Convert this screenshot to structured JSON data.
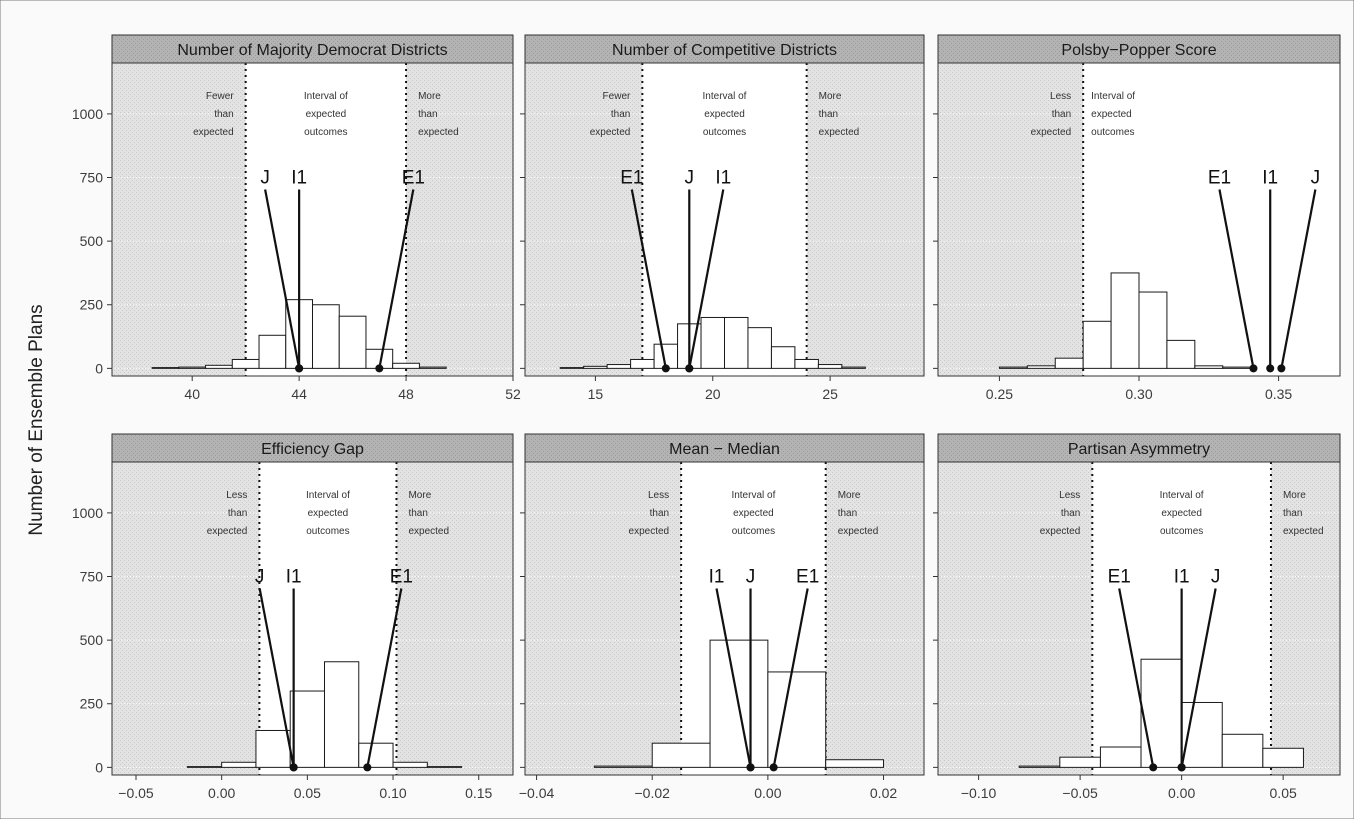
{
  "figure": {
    "ylabel": "Number of Ensemble Plans",
    "colors": {
      "panel_background": "#e3e3e3",
      "strip_background": "#b3b3b3",
      "bar_fill": "#ffffff",
      "interval_fill": "#ffffff",
      "bar_stroke": "#1a1a1a",
      "marker": "#111111",
      "grid": "#f4f4f4"
    }
  },
  "chart_data": [
    {
      "type": "bar",
      "title": "Number of Majority Democrat Districts",
      "xlim": [
        37,
        52
      ],
      "xticks": [
        40,
        44,
        48,
        52
      ],
      "xtick_labels": [
        "40",
        "44",
        "48",
        "52"
      ],
      "ylim": [
        -30,
        1200
      ],
      "yticks": [
        0,
        250,
        500,
        750,
        1000
      ],
      "ytick_labels": [
        "0",
        "250",
        "500",
        "750",
        "1000"
      ],
      "bin_width": 1,
      "bins": [
        {
          "x": 39,
          "y": 3
        },
        {
          "x": 40,
          "y": 5
        },
        {
          "x": 41,
          "y": 12
        },
        {
          "x": 42,
          "y": 35
        },
        {
          "x": 43,
          "y": 130
        },
        {
          "x": 44,
          "y": 270
        },
        {
          "x": 45,
          "y": 250
        },
        {
          "x": 46,
          "y": 205
        },
        {
          "x": 47,
          "y": 75
        },
        {
          "x": 48,
          "y": 20
        },
        {
          "x": 49,
          "y": 5
        }
      ],
      "interval": [
        42,
        48
      ],
      "annotations": [
        {
          "lines": [
            "Fewer",
            "than",
            "expected"
          ],
          "region": "left"
        },
        {
          "lines": [
            "Interval of",
            "expected",
            "outcomes"
          ],
          "region": "middle"
        },
        {
          "lines": [
            "More",
            "than",
            "expected"
          ],
          "region": "right"
        }
      ],
      "plans": [
        {
          "name": "J",
          "value": 44
        },
        {
          "name": "I1",
          "value": 44
        },
        {
          "name": "E1",
          "value": 47
        }
      ]
    },
    {
      "type": "bar",
      "title": "Number of Competitive Districts",
      "xlim": [
        12,
        29
      ],
      "xticks": [
        15,
        20,
        25
      ],
      "xtick_labels": [
        "15",
        "20",
        "25"
      ],
      "ylim": [
        -30,
        1200
      ],
      "yticks": [
        0,
        250,
        500,
        750,
        1000
      ],
      "ytick_labels": [
        "0",
        "250",
        "500",
        "750",
        "1000"
      ],
      "bin_width": 1,
      "bins": [
        {
          "x": 14,
          "y": 3
        },
        {
          "x": 15,
          "y": 8
        },
        {
          "x": 16,
          "y": 15
        },
        {
          "x": 17,
          "y": 35
        },
        {
          "x": 18,
          "y": 95
        },
        {
          "x": 19,
          "y": 175
        },
        {
          "x": 20,
          "y": 200
        },
        {
          "x": 21,
          "y": 200
        },
        {
          "x": 22,
          "y": 160
        },
        {
          "x": 23,
          "y": 85
        },
        {
          "x": 24,
          "y": 35
        },
        {
          "x": 25,
          "y": 15
        },
        {
          "x": 26,
          "y": 5
        }
      ],
      "interval": [
        17,
        24
      ],
      "annotations": [
        {
          "lines": [
            "Fewer",
            "than",
            "expected"
          ],
          "region": "left"
        },
        {
          "lines": [
            "Interval of",
            "expected",
            "outcomes"
          ],
          "region": "middle"
        },
        {
          "lines": [
            "More",
            "than",
            "expected"
          ],
          "region": "right"
        }
      ],
      "plans": [
        {
          "name": "E1",
          "value": 18
        },
        {
          "name": "J",
          "value": 19
        },
        {
          "name": "I1",
          "value": 19
        }
      ]
    },
    {
      "type": "bar",
      "title": "Polsby−Popper Score",
      "xlim": [
        0.228,
        0.372
      ],
      "xticks": [
        0.25,
        0.3,
        0.35
      ],
      "xtick_labels": [
        "0.25",
        "0.30",
        "0.35"
      ],
      "ylim": [
        -30,
        1200
      ],
      "yticks": [
        0,
        250,
        500,
        750,
        1000
      ],
      "ytick_labels": [
        "0",
        "250",
        "500",
        "750",
        "1000"
      ],
      "bin_width": 0.01,
      "bins": [
        {
          "x": 0.255,
          "y": 5
        },
        {
          "x": 0.265,
          "y": 10
        },
        {
          "x": 0.275,
          "y": 40
        },
        {
          "x": 0.285,
          "y": 185
        },
        {
          "x": 0.295,
          "y": 375
        },
        {
          "x": 0.305,
          "y": 300
        },
        {
          "x": 0.315,
          "y": 110
        },
        {
          "x": 0.325,
          "y": 10
        },
        {
          "x": 0.335,
          "y": 5
        }
      ],
      "interval": [
        0.28,
        0.38
      ],
      "annotations": [
        {
          "lines": [
            "Less",
            "than",
            "expected"
          ],
          "region": "left"
        },
        {
          "lines": [
            "Interval of",
            "expected",
            "outcomes"
          ],
          "region": "middle"
        },
        {
          "lines": [],
          "region": "right"
        }
      ],
      "plans": [
        {
          "name": "E1",
          "value": 0.341
        },
        {
          "name": "I1",
          "value": 0.347
        },
        {
          "name": "J",
          "value": 0.351
        }
      ]
    },
    {
      "type": "bar",
      "title": "Efficiency Gap",
      "xlim": [
        -0.064,
        0.17
      ],
      "xticks": [
        -0.05,
        0.0,
        0.05,
        0.1,
        0.15
      ],
      "xtick_labels": [
        "−0.05",
        "0.00",
        "0.05",
        "0.10",
        "0.15"
      ],
      "ylim": [
        -30,
        1200
      ],
      "yticks": [
        0,
        250,
        500,
        750,
        1000
      ],
      "ytick_labels": [
        "0",
        "250",
        "500",
        "750",
        "1000"
      ],
      "bin_width": 0.02,
      "bins": [
        {
          "x": -0.01,
          "y": 3
        },
        {
          "x": 0.01,
          "y": 20
        },
        {
          "x": 0.03,
          "y": 145
        },
        {
          "x": 0.05,
          "y": 300
        },
        {
          "x": 0.07,
          "y": 415
        },
        {
          "x": 0.09,
          "y": 95
        },
        {
          "x": 0.11,
          "y": 20
        },
        {
          "x": 0.13,
          "y": 3
        }
      ],
      "interval": [
        0.022,
        0.102
      ],
      "annotations": [
        {
          "lines": [
            "Less",
            "than",
            "expected"
          ],
          "region": "left"
        },
        {
          "lines": [
            "Interval of",
            "expected",
            "outcomes"
          ],
          "region": "middle"
        },
        {
          "lines": [
            "More",
            "than",
            "expected"
          ],
          "region": "right"
        }
      ],
      "plans": [
        {
          "name": "J",
          "value": 0.042
        },
        {
          "name": "I1",
          "value": 0.042
        },
        {
          "name": "E1",
          "value": 0.085
        }
      ]
    },
    {
      "type": "bar",
      "title": "Mean − Median",
      "xlim": [
        -0.042,
        0.027
      ],
      "xticks": [
        -0.04,
        -0.02,
        0.0,
        0.02
      ],
      "xtick_labels": [
        "−0.04",
        "−0.02",
        "0.00",
        "0.02"
      ],
      "ylim": [
        -30,
        1200
      ],
      "yticks": [
        0,
        250,
        500,
        750,
        1000
      ],
      "ytick_labels": [
        "0",
        "250",
        "500",
        "750",
        "1000"
      ],
      "bin_width": 0.01,
      "bins": [
        {
          "x": -0.025,
          "y": 5
        },
        {
          "x": -0.015,
          "y": 95
        },
        {
          "x": -0.005,
          "y": 500
        },
        {
          "x": 0.005,
          "y": 375
        },
        {
          "x": 0.015,
          "y": 30
        }
      ],
      "interval": [
        -0.015,
        0.01
      ],
      "annotations": [
        {
          "lines": [
            "Less",
            "than",
            "expected"
          ],
          "region": "left"
        },
        {
          "lines": [
            "Interval of",
            "expected",
            "outcomes"
          ],
          "region": "middle"
        },
        {
          "lines": [
            "More",
            "than",
            "expected"
          ],
          "region": "right"
        }
      ],
      "plans": [
        {
          "name": "I1",
          "value": -0.003
        },
        {
          "name": "J",
          "value": -0.003
        },
        {
          "name": "E1",
          "value": 0.001
        }
      ]
    },
    {
      "type": "bar",
      "title": "Partisan Asymmetry",
      "xlim": [
        -0.12,
        0.078
      ],
      "xticks": [
        -0.1,
        -0.05,
        0.0,
        0.05
      ],
      "xtick_labels": [
        "−0.10",
        "−0.05",
        "0.00",
        "0.05"
      ],
      "ylim": [
        -30,
        1200
      ],
      "yticks": [
        0,
        250,
        500,
        750,
        1000
      ],
      "ytick_labels": [
        "0",
        "250",
        "500",
        "750",
        "1000"
      ],
      "bin_width": 0.02,
      "bins": [
        {
          "x": -0.07,
          "y": 5
        },
        {
          "x": -0.05,
          "y": 40
        },
        {
          "x": -0.03,
          "y": 80
        },
        {
          "x": -0.01,
          "y": 425
        },
        {
          "x": 0.01,
          "y": 255
        },
        {
          "x": 0.03,
          "y": 130
        },
        {
          "x": 0.05,
          "y": 75
        }
      ],
      "interval": [
        -0.044,
        0.044
      ],
      "annotations": [
        {
          "lines": [
            "Less",
            "than",
            "expected"
          ],
          "region": "left"
        },
        {
          "lines": [
            "Interval of",
            "expected",
            "outcomes"
          ],
          "region": "middle"
        },
        {
          "lines": [
            "More",
            "than",
            "expected"
          ],
          "region": "right"
        }
      ],
      "plans": [
        {
          "name": "E1",
          "value": -0.014
        },
        {
          "name": "I1",
          "value": 0.0
        },
        {
          "name": "J",
          "value": 0.0
        }
      ]
    }
  ]
}
